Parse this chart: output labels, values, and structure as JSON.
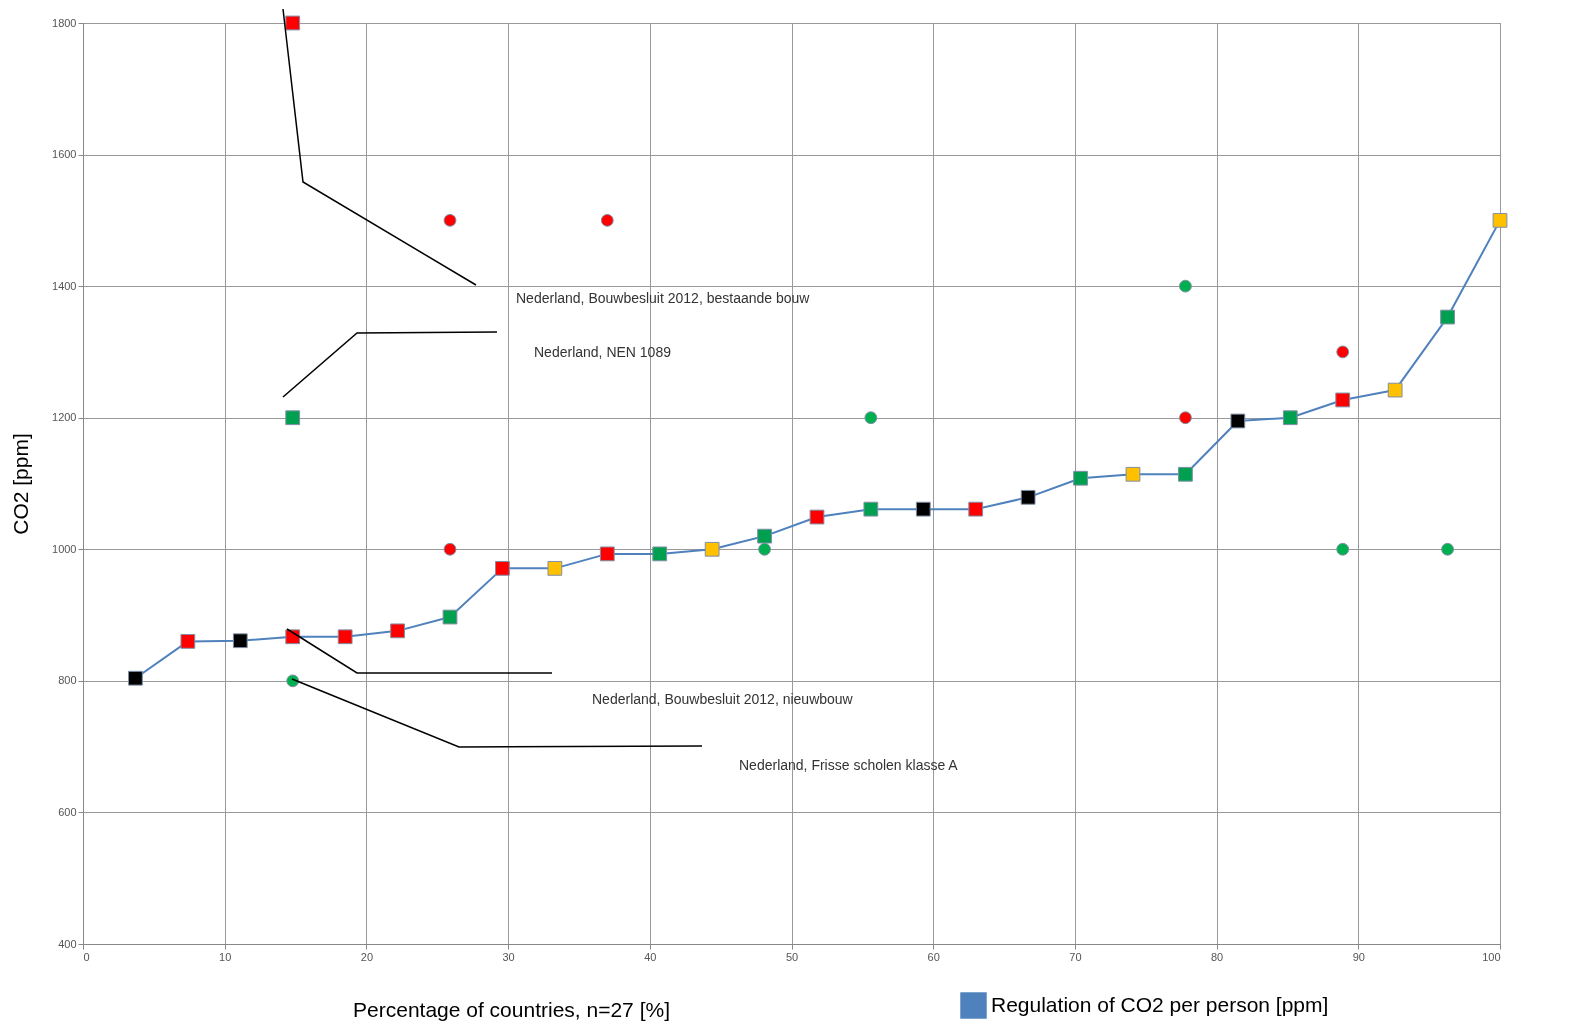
{
  "chart_data": {
    "type": "line",
    "xlabel": "Percentage of countries, n=27 [%]",
    "ylabel": "CO2 [ppm]",
    "xlim": [
      0,
      100
    ],
    "xticks": [
      0,
      10,
      20,
      30,
      40,
      50,
      60,
      70,
      80,
      90,
      100
    ],
    "ylim": [
      400,
      1800
    ],
    "yticks": [
      400,
      600,
      800,
      1000,
      1200,
      1400,
      1600,
      1800
    ],
    "grid": true,
    "legend": "bottom right",
    "series": [
      {
        "name": "Regulation of CO2 per person [ppm]",
        "marker": "square",
        "color": "#4f81bd",
        "x": [
          3.7,
          7.4,
          11.1,
          14.8,
          18.5,
          22.2,
          25.9,
          29.6,
          33.3,
          37.0,
          40.7,
          44.4,
          48.1,
          51.8,
          55.6,
          59.3,
          63.0,
          66.7,
          70.4,
          74.1,
          77.8,
          81.5,
          85.2,
          88.9,
          92.6,
          96.3,
          100
        ],
        "values": [
          804,
          860,
          861,
          867,
          867,
          876,
          897,
          971,
          971,
          993,
          993,
          1000,
          1020,
          1049,
          1061,
          1061,
          1061,
          1079,
          1108,
          1114,
          1114,
          1195,
          1200,
          1227,
          1242,
          1353,
          1500
        ],
        "colors": [
          "#000000",
          "#ff0000",
          "#000000",
          "#ff0000",
          "#ff0000",
          "#ff0000",
          "#00a050",
          "#ff0000",
          "#ffc000",
          "#ff0000",
          "#00a050",
          "#ffc000",
          "#00a050",
          "#ff0000",
          "#00a050",
          "#000000",
          "#ff0000",
          "#000000",
          "#00a050",
          "#ffc000",
          "#00a050",
          "#000000",
          "#00a050",
          "#ff0000",
          "#ffc000",
          "#00a050",
          "#ffc000"
        ]
      },
      {
        "type": "scatter",
        "marker": "square",
        "x": [
          14.8,
          14.8
        ],
        "values": [
          1800,
          1200
        ],
        "colors": [
          "#ff0000",
          "#00a050"
        ]
      },
      {
        "type": "scatter",
        "marker": "circle",
        "x": [
          25.9,
          37.0,
          77.8,
          88.9,
          55.6,
          77.8,
          25.9,
          48.1,
          88.9,
          96.3,
          14.8
        ],
        "values": [
          1500,
          1500,
          1400,
          1300,
          1200,
          1200,
          1000,
          1000,
          1000,
          1000,
          800
        ],
        "colors": [
          "#ff0000",
          "#ff0000",
          "#00b050",
          "#ff0000",
          "#00b050",
          "#ff0000",
          "#ff0000",
          "#00b050",
          "#00b050",
          "#00b050",
          "#00b050"
        ]
      }
    ],
    "annotations": [
      "Nederland, Bouwbesluit 2012, bestaande bouw",
      "Nederland,  NEN 1089",
      "Nederland, Bouwbesluit 2012, nieuwbouw",
      "Nederland, Frisse scholen klasse A"
    ]
  }
}
